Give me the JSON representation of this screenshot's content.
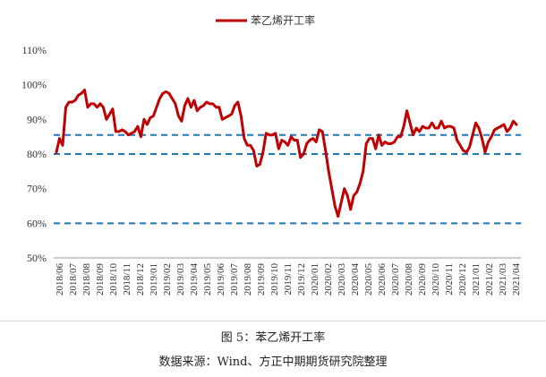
{
  "figure": {
    "caption": "图 5：苯乙烯开工率",
    "source": "数据来源：Wind、方正中期期货研究院整理"
  },
  "chart_data": {
    "type": "line",
    "legend": {
      "position": "top-center",
      "entries": [
        "苯乙烯开工率"
      ]
    },
    "ylabel": "",
    "xlabel": "",
    "ylim": [
      50,
      110
    ],
    "y_ticks": [
      "50%",
      "60%",
      "70%",
      "80%",
      "90%",
      "100%",
      "110%"
    ],
    "grid": false,
    "colors": {
      "series": "#c00000",
      "ref_lines": "#1f77b4",
      "axis": "#999999"
    },
    "x_tick_labels": [
      "2018/06",
      "2018/07",
      "2018/08",
      "2018/09",
      "2018/10",
      "2018/11",
      "2018/12",
      "2019/01",
      "2019/02",
      "2019/03",
      "2019/04",
      "2019/05",
      "2019/06",
      "2019/07",
      "2019/08",
      "2019/09",
      "2019/10",
      "2019/11",
      "2019/12",
      "2020/01",
      "2020/02",
      "2020/03",
      "2020/04",
      "2020/05",
      "2020/06",
      "2020/07",
      "2020/08",
      "2020/09",
      "2020/10",
      "2020/11",
      "2020/12",
      "2021/01",
      "2021/02",
      "2021/03",
      "2021/04"
    ],
    "reference_lines": [
      85.5,
      80,
      60
    ],
    "series": [
      {
        "name": "苯乙烯开工率",
        "values": [
          80.5,
          84.5,
          82.5,
          93.5,
          95,
          95,
          95.5,
          97,
          97.5,
          98.5,
          93.5,
          94.5,
          94.5,
          93.5,
          94.5,
          93.5,
          90,
          91.5,
          93,
          86.5,
          86.5,
          87,
          86.5,
          85.5,
          86,
          86.5,
          88,
          85,
          90,
          88.5,
          90.5,
          91,
          93.5,
          96,
          97.5,
          98,
          97.5,
          96,
          94.5,
          91,
          89.5,
          94,
          96,
          93.5,
          95.5,
          92.5,
          93.5,
          94,
          95,
          94.5,
          94.5,
          93.5,
          93.5,
          90,
          90.5,
          91,
          91.5,
          94,
          95,
          91,
          84.5,
          82.5,
          82.5,
          81,
          76.5,
          77,
          80.5,
          86,
          85.5,
          85.5,
          86,
          81.5,
          84,
          83.5,
          82.5,
          85,
          84,
          84,
          79,
          80,
          83,
          84,
          84.5,
          83.5,
          87,
          86.5,
          81,
          75,
          70,
          65,
          62,
          66,
          70,
          68,
          64,
          68,
          69,
          71.5,
          75,
          83,
          84.5,
          84.5,
          81.5,
          85.5,
          82.5,
          83.5,
          83,
          83,
          83.5,
          85,
          85,
          88,
          92.5,
          89,
          85.5,
          87.5,
          86.5,
          88,
          87.5,
          87.5,
          89,
          87.5,
          87.5,
          89.5,
          87.5,
          88,
          88,
          87.5,
          84,
          82.5,
          81,
          80.5,
          82,
          85.5,
          89,
          87.5,
          84.5,
          80.5,
          83.5,
          85,
          87,
          87.5,
          88,
          88.5,
          86.5,
          87.5,
          89.5,
          88.5
        ]
      }
    ]
  }
}
